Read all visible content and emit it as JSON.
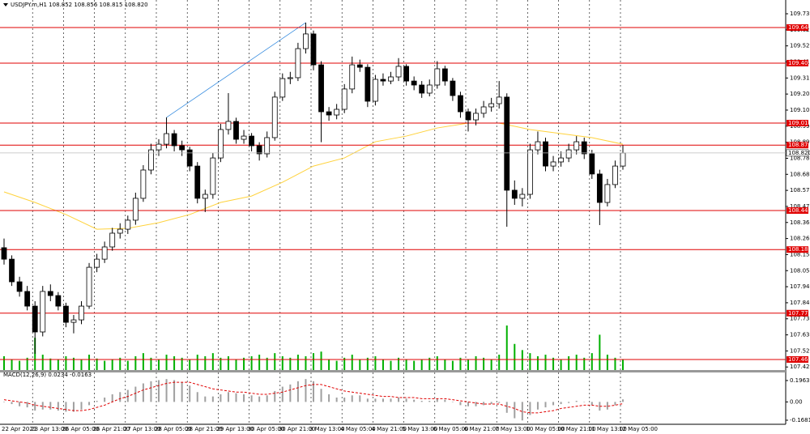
{
  "chart_data": {
    "type": "candlestick",
    "title": "USDJPY.m,H1  108.852 108.856 108.815 108.820",
    "categories": [
      "22 Apr 2021",
      null,
      null,
      null,
      "23 Apr 13:00",
      null,
      null,
      null,
      "26 Apr 05:00",
      null,
      null,
      null,
      "26 Apr 21:00",
      null,
      null,
      null,
      "27 Apr 13:00",
      null,
      null,
      null,
      "28 Apr 05:00",
      null,
      null,
      null,
      "28 Apr 21:00",
      null,
      null,
      null,
      "29 Apr 13:00",
      null,
      null,
      null,
      "30 Apr 05:00",
      null,
      null,
      null,
      "30 Apr 21:00",
      null,
      null,
      null,
      "3 May 13:00",
      null,
      null,
      null,
      "4 May 05:00",
      null,
      null,
      null,
      "4 May 21:00",
      null,
      null,
      null,
      "5 May 13:00",
      null,
      null,
      null,
      "6 May 05:00",
      null,
      null,
      null,
      "6 May 21:00",
      null,
      null,
      null,
      "7 May 13:00",
      null,
      null,
      null,
      "10 May 05:00",
      null,
      null,
      null,
      "10 May 21:00",
      null,
      null,
      null,
      "11 May 13:00",
      null,
      null,
      null,
      "12 May 05:00"
    ],
    "ohlc": [
      [
        108.2,
        108.26,
        108.09,
        108.125
      ],
      [
        108.125,
        108.15,
        107.95,
        107.977
      ],
      [
        107.977,
        108.01,
        107.88,
        107.914
      ],
      [
        107.914,
        107.95,
        107.79,
        107.818
      ],
      [
        107.818,
        107.85,
        107.506,
        107.649
      ],
      [
        107.649,
        107.95,
        107.62,
        107.914
      ],
      [
        107.914,
        107.96,
        107.85,
        107.887
      ],
      [
        107.887,
        107.91,
        107.79,
        107.818
      ],
      [
        107.818,
        107.84,
        107.68,
        107.712
      ],
      [
        107.712,
        107.76,
        107.64,
        107.728
      ],
      [
        107.728,
        107.85,
        107.7,
        107.818
      ],
      [
        107.818,
        108.1,
        107.8,
        108.072
      ],
      [
        108.072,
        108.16,
        108.04,
        108.125
      ],
      [
        108.125,
        108.24,
        108.1,
        108.205
      ],
      [
        108.205,
        108.33,
        108.18,
        108.295
      ],
      [
        108.295,
        108.36,
        108.26,
        108.321
      ],
      [
        108.321,
        108.41,
        108.29,
        108.38
      ],
      [
        108.38,
        108.56,
        108.35,
        108.523
      ],
      [
        108.523,
        108.74,
        108.5,
        108.708
      ],
      [
        108.708,
        108.88,
        108.68,
        108.84
      ],
      [
        108.84,
        108.91,
        108.8,
        108.877
      ],
      [
        108.877,
        109.052,
        108.85,
        108.946
      ],
      [
        108.946,
        108.97,
        108.83,
        108.867
      ],
      [
        108.867,
        108.9,
        108.8,
        108.84
      ],
      [
        108.84,
        108.86,
        108.7,
        108.734
      ],
      [
        108.734,
        108.76,
        108.49,
        108.523
      ],
      [
        108.523,
        108.58,
        108.433,
        108.549
      ],
      [
        108.549,
        108.82,
        108.52,
        108.787
      ],
      [
        108.787,
        109.01,
        108.76,
        108.973
      ],
      [
        108.973,
        109.211,
        108.94,
        109.026
      ],
      [
        109.026,
        109.05,
        108.88,
        108.909
      ],
      [
        108.909,
        108.97,
        108.88,
        108.93
      ],
      [
        108.93,
        108.95,
        108.83,
        108.867
      ],
      [
        108.867,
        108.89,
        108.77,
        108.814
      ],
      [
        108.814,
        108.96,
        108.79,
        108.92
      ],
      [
        108.92,
        109.22,
        108.9,
        109.185
      ],
      [
        109.185,
        109.34,
        109.16,
        109.306
      ],
      [
        109.306,
        109.35,
        109.27,
        109.312
      ],
      [
        109.312,
        109.54,
        109.29,
        109.502
      ],
      [
        109.502,
        109.672,
        109.47,
        109.598
      ],
      [
        109.598,
        109.62,
        109.36,
        109.396
      ],
      [
        109.396,
        109.42,
        108.89,
        109.089
      ],
      [
        109.089,
        109.12,
        109.03,
        109.068
      ],
      [
        109.068,
        109.14,
        109.04,
        109.105
      ],
      [
        109.105,
        109.27,
        109.08,
        109.238
      ],
      [
        109.238,
        109.45,
        109.21,
        109.396
      ],
      [
        109.396,
        109.43,
        109.35,
        109.38
      ],
      [
        109.38,
        109.4,
        109.12,
        109.158
      ],
      [
        109.158,
        109.33,
        109.13,
        109.301
      ],
      [
        109.301,
        109.34,
        109.26,
        109.29
      ],
      [
        109.29,
        109.35,
        109.27,
        109.317
      ],
      [
        109.317,
        109.44,
        109.29,
        109.386
      ],
      [
        109.386,
        109.4,
        109.26,
        109.29
      ],
      [
        109.29,
        109.32,
        109.23,
        109.264
      ],
      [
        109.264,
        109.29,
        109.18,
        109.211
      ],
      [
        109.211,
        109.3,
        109.19,
        109.264
      ],
      [
        109.264,
        109.42,
        109.24,
        109.37
      ],
      [
        109.37,
        109.39,
        109.26,
        109.29
      ],
      [
        109.29,
        109.31,
        109.16,
        109.195
      ],
      [
        109.195,
        109.22,
        109.05,
        109.089
      ],
      [
        109.089,
        109.11,
        108.96,
        109.036
      ],
      [
        109.036,
        109.11,
        109.0,
        109.079
      ],
      [
        109.079,
        109.16,
        109.05,
        109.121
      ],
      [
        109.121,
        109.18,
        109.09,
        109.142
      ],
      [
        109.142,
        109.29,
        109.11,
        109.185
      ],
      [
        109.185,
        109.21,
        108.337,
        108.576
      ],
      [
        108.576,
        108.64,
        108.48,
        108.523
      ],
      [
        108.523,
        108.59,
        108.47,
        108.549
      ],
      [
        108.549,
        108.88,
        108.52,
        108.84
      ],
      [
        108.84,
        108.96,
        108.81,
        108.893
      ],
      [
        108.893,
        108.92,
        108.7,
        108.734
      ],
      [
        108.734,
        108.8,
        108.7,
        108.761
      ],
      [
        108.761,
        108.83,
        108.73,
        108.787
      ],
      [
        108.787,
        108.88,
        108.76,
        108.84
      ],
      [
        108.84,
        108.93,
        108.81,
        108.893
      ],
      [
        108.893,
        108.92,
        108.78,
        108.814
      ],
      [
        108.814,
        108.84,
        108.65,
        108.682
      ],
      [
        108.682,
        108.71,
        108.348,
        108.496
      ],
      [
        108.496,
        108.65,
        108.47,
        108.613
      ],
      [
        108.613,
        108.77,
        108.59,
        108.734
      ],
      [
        108.734,
        108.87,
        108.71,
        108.82
      ]
    ],
    "volume": [
      18,
      14,
      12,
      16,
      42,
      20,
      15,
      14,
      18,
      16,
      14,
      20,
      15,
      12,
      14,
      16,
      12,
      18,
      22,
      16,
      14,
      20,
      18,
      16,
      14,
      20,
      18,
      22,
      16,
      18,
      14,
      16,
      18,
      20,
      16,
      22,
      18,
      16,
      20,
      18,
      22,
      24,
      14,
      12,
      16,
      20,
      14,
      16,
      18,
      14,
      12,
      16,
      14,
      12,
      14,
      16,
      18,
      14,
      12,
      16,
      14,
      18,
      16,
      14,
      20,
      58,
      34,
      26,
      22,
      18,
      20,
      16,
      14,
      18,
      20,
      16,
      22,
      46,
      20,
      16,
      14
    ],
    "volume_color": "#00b000",
    "moving_average": {
      "color": "#ffd23c",
      "x": [
        0,
        4,
        8,
        12,
        16,
        20,
        24,
        28,
        32,
        36,
        40,
        44,
        48,
        52,
        56,
        60,
        64,
        68,
        72,
        76,
        80
      ],
      "values": [
        108.565,
        108.496,
        108.417,
        108.321,
        108.327,
        108.364,
        108.417,
        108.496,
        108.538,
        108.628,
        108.734,
        108.787,
        108.893,
        108.93,
        108.983,
        109.015,
        109.015,
        108.973,
        108.946,
        108.92,
        108.877
      ]
    },
    "levels": [
      {
        "value": 109.64,
        "label": "109.640"
      },
      {
        "value": 109.407,
        "label": "109.407"
      },
      {
        "value": 109.015,
        "label": "109.015"
      },
      {
        "value": 108.871,
        "label": "108.871"
      },
      {
        "value": 108.443,
        "label": "108.443"
      },
      {
        "value": 108.188,
        "label": "108.188"
      },
      {
        "value": 107.772,
        "label": "107.772"
      },
      {
        "value": 107.469,
        "label": "107.469"
      }
    ],
    "level_color": "#e00000",
    "current_price": {
      "value": 108.82,
      "label": "108.820"
    },
    "ylim": [
      107.4,
      109.82
    ],
    "yticks": [
      {
        "value": 109.73,
        "label": "109.730"
      },
      {
        "value": 109.625,
        "label": "109.625"
      },
      {
        "value": 109.52,
        "label": "109.520"
      },
      {
        "value": 109.415,
        "label": "109.415"
      },
      {
        "value": 109.31,
        "label": "109.310"
      },
      {
        "value": 109.205,
        "label": "109.205"
      },
      {
        "value": 109.1,
        "label": "109.100"
      },
      {
        "value": 108.995,
        "label": "108.995"
      },
      {
        "value": 108.89,
        "label": "108.890"
      },
      {
        "value": 108.785,
        "label": "108.785"
      },
      {
        "value": 108.68,
        "label": "108.680"
      },
      {
        "value": 108.575,
        "label": "108.575"
      },
      {
        "value": 108.47,
        "label": "108.470"
      },
      {
        "value": 108.365,
        "label": "108.365"
      },
      {
        "value": 108.26,
        "label": "108.260"
      },
      {
        "value": 108.155,
        "label": "108.155"
      },
      {
        "value": 108.05,
        "label": "108.050"
      },
      {
        "value": 107.945,
        "label": "107.945"
      },
      {
        "value": 107.84,
        "label": "107.840"
      },
      {
        "value": 107.735,
        "label": "107.735"
      },
      {
        "value": 107.63,
        "label": "107.630"
      },
      {
        "value": 107.525,
        "label": "107.525"
      },
      {
        "value": 107.42,
        "label": "107.420"
      }
    ],
    "grid": true,
    "macd": {
      "title": "MACD(12,26,9) 0.0234 -0.0163",
      "histogram_color": "#a0a0a0",
      "signal_color": "#e00000",
      "histogram": [
        0.0,
        -0.02,
        -0.04,
        -0.05,
        -0.08,
        -0.07,
        -0.07,
        -0.08,
        -0.09,
        -0.09,
        -0.07,
        -0.03,
        0.01,
        0.04,
        0.07,
        0.09,
        0.11,
        0.14,
        0.17,
        0.19,
        0.2,
        0.21,
        0.2,
        0.18,
        0.15,
        0.09,
        0.05,
        0.05,
        0.07,
        0.09,
        0.08,
        0.07,
        0.06,
        0.05,
        0.06,
        0.1,
        0.14,
        0.16,
        0.19,
        0.21,
        0.19,
        0.12,
        0.07,
        0.04,
        0.04,
        0.06,
        0.06,
        0.03,
        0.03,
        0.03,
        0.03,
        0.04,
        0.03,
        0.02,
        0.01,
        0.01,
        0.03,
        0.02,
        0.0,
        -0.03,
        -0.04,
        -0.04,
        -0.03,
        -0.02,
        -0.01,
        -0.1,
        -0.15,
        -0.17,
        -0.12,
        -0.07,
        -0.05,
        -0.03,
        -0.02,
        -0.01,
        0.01,
        0.0,
        -0.03,
        -0.08,
        -0.07,
        -0.03,
        0.0234
      ],
      "signal": [
        0.02,
        0.01,
        0.0,
        -0.01,
        -0.03,
        -0.04,
        -0.05,
        -0.06,
        -0.07,
        -0.08,
        -0.08,
        -0.07,
        -0.05,
        -0.03,
        0.0,
        0.03,
        0.05,
        0.08,
        0.11,
        0.13,
        0.15,
        0.17,
        0.18,
        0.18,
        0.18,
        0.16,
        0.14,
        0.12,
        0.11,
        0.1,
        0.09,
        0.09,
        0.08,
        0.07,
        0.07,
        0.08,
        0.09,
        0.11,
        0.13,
        0.15,
        0.16,
        0.16,
        0.14,
        0.12,
        0.1,
        0.09,
        0.08,
        0.07,
        0.06,
        0.05,
        0.05,
        0.04,
        0.04,
        0.04,
        0.03,
        0.03,
        0.03,
        0.03,
        0.02,
        0.01,
        0.0,
        -0.01,
        -0.02,
        -0.02,
        -0.02,
        -0.04,
        -0.06,
        -0.09,
        -0.1,
        -0.1,
        -0.09,
        -0.08,
        -0.06,
        -0.05,
        -0.04,
        -0.03,
        -0.03,
        -0.04,
        -0.04,
        -0.03,
        -0.0163
      ],
      "ylim": [
        -0.198,
        0.263
      ],
      "yticks": [
        0.1963,
        {
          "value": 0,
          "label": "0.00"
        },
        -0.1681
      ]
    }
  }
}
